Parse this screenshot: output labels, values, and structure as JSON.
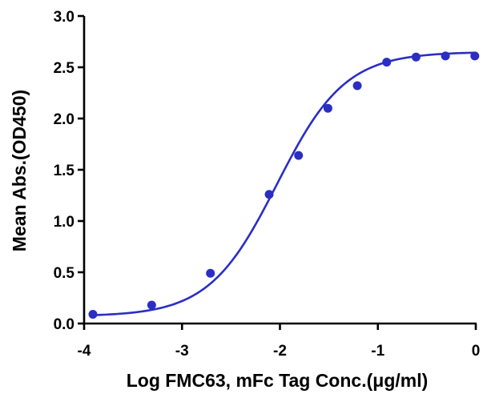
{
  "chart_data": {
    "type": "scatter",
    "title": "",
    "xlabel": "Log FMC63, mFc Tag Conc.(μg/ml)",
    "ylabel": "Mean Abs.(OD450)",
    "xlim": [
      -4,
      0
    ],
    "ylim": [
      0.0,
      3.0
    ],
    "x_ticks": [
      -4,
      -3,
      -2,
      -1,
      0
    ],
    "x_tick_labels": [
      "-4",
      "-3",
      "-2",
      "-1",
      "0"
    ],
    "y_ticks": [
      0.0,
      0.5,
      1.0,
      1.5,
      2.0,
      2.5,
      3.0
    ],
    "y_tick_labels": [
      "0.0",
      "0.5",
      "1.0",
      "1.5",
      "2.0",
      "2.5",
      "3.0"
    ],
    "grid": false,
    "legend": "none",
    "series": [
      {
        "x": [
          -3.91,
          -3.31,
          -2.71,
          -2.11,
          -1.81,
          -1.51,
          -1.21,
          -0.91,
          -0.61,
          -0.31,
          -0.01
        ],
        "y": [
          0.09,
          0.18,
          0.49,
          1.26,
          1.64,
          2.1,
          2.32,
          2.55,
          2.6,
          2.61,
          2.61
        ],
        "color": "#2a2ec4"
      }
    ],
    "fit_curve": {
      "model": "4PL",
      "bottom": 0.07,
      "top": 2.65,
      "log_ec50": -2.03,
      "hill_slope": 1.25,
      "color": "#2a2ec4"
    }
  }
}
